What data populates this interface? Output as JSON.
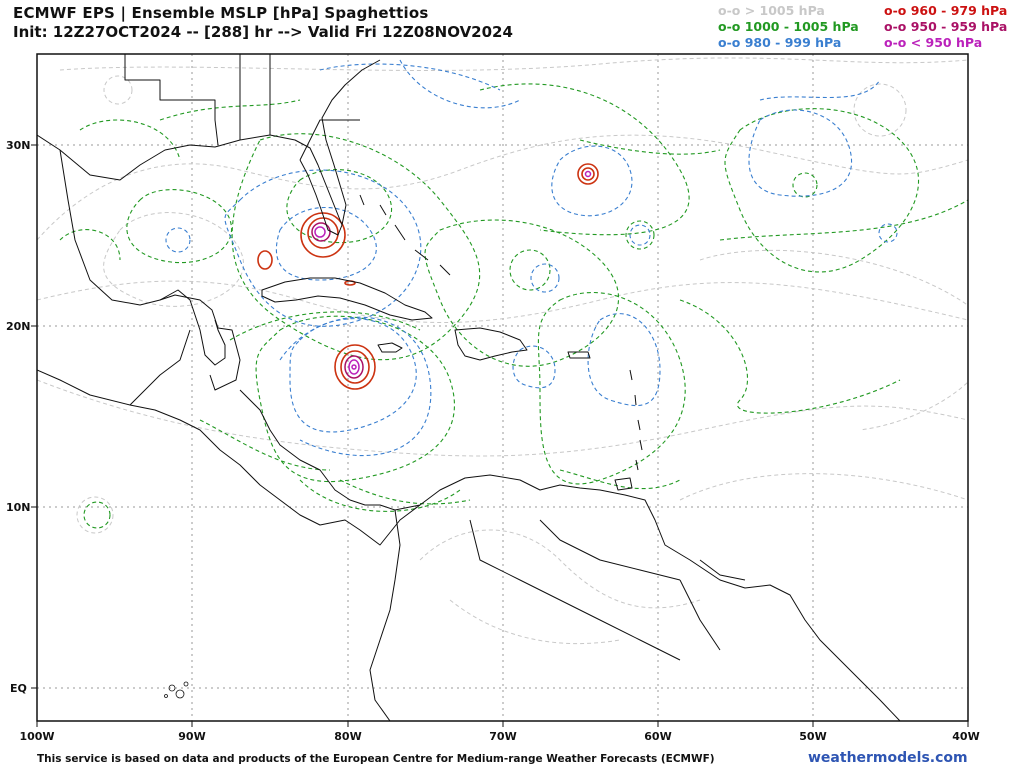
{
  "title": "ECMWF EPS | Ensemble MSLP [hPa] Spaghettios",
  "subtitle": "Init: 12Z27OCT2024 -- [288] hr --> Valid Fri 12Z08NOV2024",
  "legend": [
    {
      "text": "o-o > 1005 hPa",
      "color": "#c8c8c8"
    },
    {
      "text": "o-o 1000 - 1005 hPa",
      "color": "#229922"
    },
    {
      "text": "o-o 980 - 999 hPa",
      "color": "#3a7fd0"
    },
    {
      "text": "o-o 960 - 979 hPa",
      "color": "#cc1111"
    },
    {
      "text": "o-o 950 - 959 hPa",
      "color": "#aa1166"
    },
    {
      "text": "o-o < 950 hPa",
      "color": "#bb22bb"
    }
  ],
  "lat_labels": [
    "30N",
    "20N",
    "10N",
    "EQ"
  ],
  "lon_labels": [
    "100W",
    "90W",
    "80W",
    "70W",
    "60W",
    "50W",
    "40W"
  ],
  "footer_note": "This service is based on data and products of the European Centre for Medium-range Weather Forecasts (ECMWF)",
  "brand": "weathermodels.com"
}
